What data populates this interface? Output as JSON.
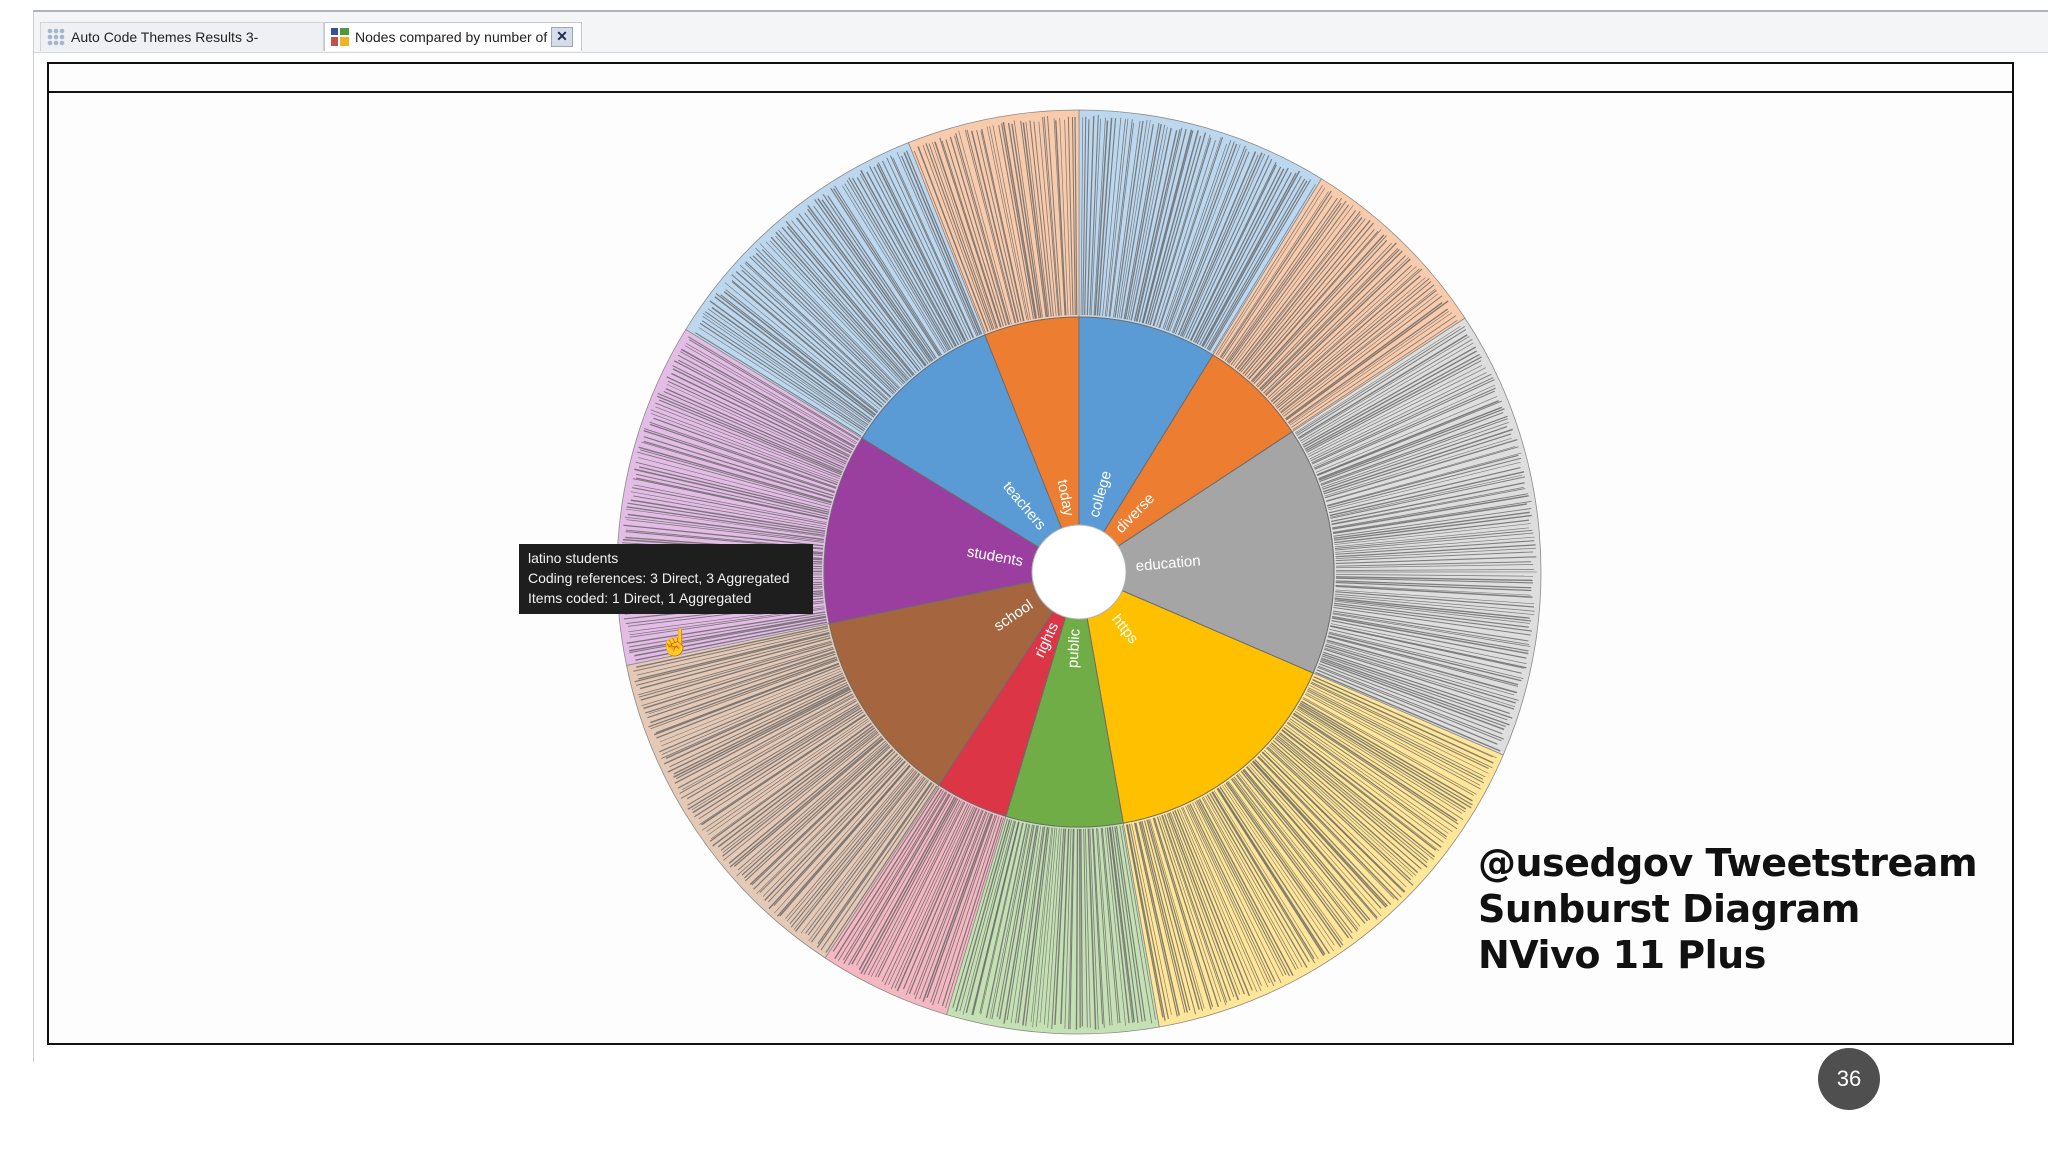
{
  "tabs": [
    {
      "label": "Auto Code Themes Results 3-",
      "icon": "grid-icon",
      "active": false
    },
    {
      "label": "Nodes compared by number of",
      "icon": "chart-icon",
      "active": true,
      "close_label": "✕"
    }
  ],
  "sunburst": {
    "center_color": "#ffffff",
    "segments": [
      {
        "label": "college",
        "color": "#5b9bd5",
        "outer_color": "#bdd7ee",
        "weight": 9.5
      },
      {
        "label": "diverse",
        "color": "#ed7d31",
        "outer_color": "#f8cbad",
        "weight": 7.5
      },
      {
        "label": "education",
        "color": "#a5a5a5",
        "outer_color": "#dedede",
        "weight": 17
      },
      {
        "label": "https",
        "color": "#ffc000",
        "outer_color": "#ffe699",
        "weight": 17
      },
      {
        "label": "public",
        "color": "#70ad47",
        "outer_color": "#c5e0b4",
        "weight": 8
      },
      {
        "label": "rights",
        "color": "#dc3545",
        "outer_color": "#f4b8c3",
        "weight": 5
      },
      {
        "label": "school",
        "color": "#a5663f",
        "outer_color": "#e5c9b7",
        "weight": 13.5
      },
      {
        "label": "students",
        "color": "#9a3fa0",
        "outer_color": "#e4bde6",
        "weight": 13
      },
      {
        "label": "teachers",
        "color": "#5b9bd5",
        "outer_color": "#bdd7ee",
        "weight": 11
      },
      {
        "label": "today",
        "color": "#ed7d31",
        "outer_color": "#f8cbad",
        "weight": 6.5
      }
    ]
  },
  "tooltip": {
    "title": "latino students",
    "line1": "Coding references: 3 Direct, 3 Aggregated",
    "line2": "Items coded: 1 Direct, 1 Aggregated"
  },
  "caption": {
    "line1": "@usedgov Tweetstream",
    "line2": "Sunburst Diagram",
    "line3": "NVivo 11 Plus"
  },
  "page_number": "36"
}
